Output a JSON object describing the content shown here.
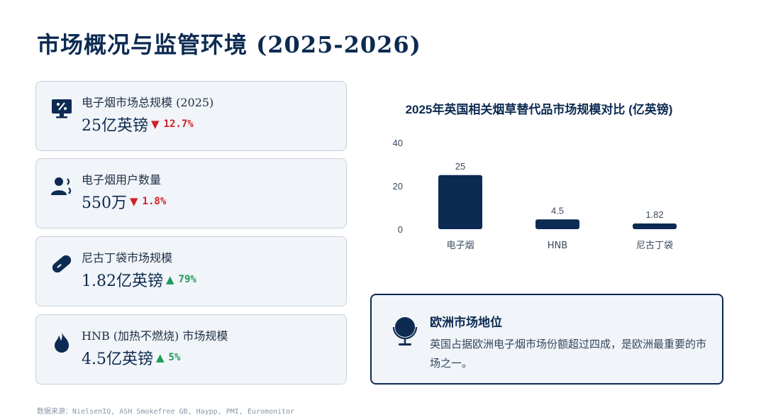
{
  "page": {
    "title": "市场概况与监管环境 (2025-2026)"
  },
  "cards": [
    {
      "label": "电子烟市场总规模 (2025)",
      "value": "25亿英镑",
      "arrow": "▼",
      "change": "12.7%",
      "direction": "down",
      "icon": "monitor-chart-icon"
    },
    {
      "label": "电子烟用户数量",
      "value": "550万",
      "arrow": "▼",
      "change": "1.8%",
      "direction": "down",
      "icon": "users-icon"
    },
    {
      "label": "尼古丁袋市场规模",
      "value": "1.82亿英镑",
      "arrow": "▲",
      "change": "79%",
      "direction": "up",
      "icon": "pill-icon"
    },
    {
      "label": "HNB (加热不燃烧) 市场规模",
      "value": "4.5亿英镑",
      "arrow": "▲",
      "change": "5%",
      "direction": "up",
      "icon": "flame-icon"
    }
  ],
  "chart_data": {
    "type": "bar",
    "title": "2025年英国相关烟草替代品市场规模对比 (亿英镑)",
    "categories": [
      "电子烟",
      "HNB",
      "尼古丁袋"
    ],
    "values": [
      25,
      4.5,
      1.82
    ],
    "value_labels": [
      "25",
      "4.5",
      "1.82"
    ],
    "yticks": [
      0,
      20,
      40
    ],
    "ylim": [
      0,
      40
    ],
    "xlabel": "",
    "ylabel": "",
    "grid": false,
    "bar_color": "#0d2b52"
  },
  "europe": {
    "title": "欧洲市场地位",
    "text": "英国占据欧洲电子烟市场份额超过四成，是欧洲最重要的市场之一。",
    "icon": "globe-icon"
  },
  "source": "数据来源：NielsenIQ, ASH Smokefree GB, Haypp, PMI, Euromonitor",
  "colors": {
    "primary": "#0d2b52",
    "down": "#d0202b",
    "up": "#1e9a5a",
    "card_bg": "#f1f4f8"
  }
}
